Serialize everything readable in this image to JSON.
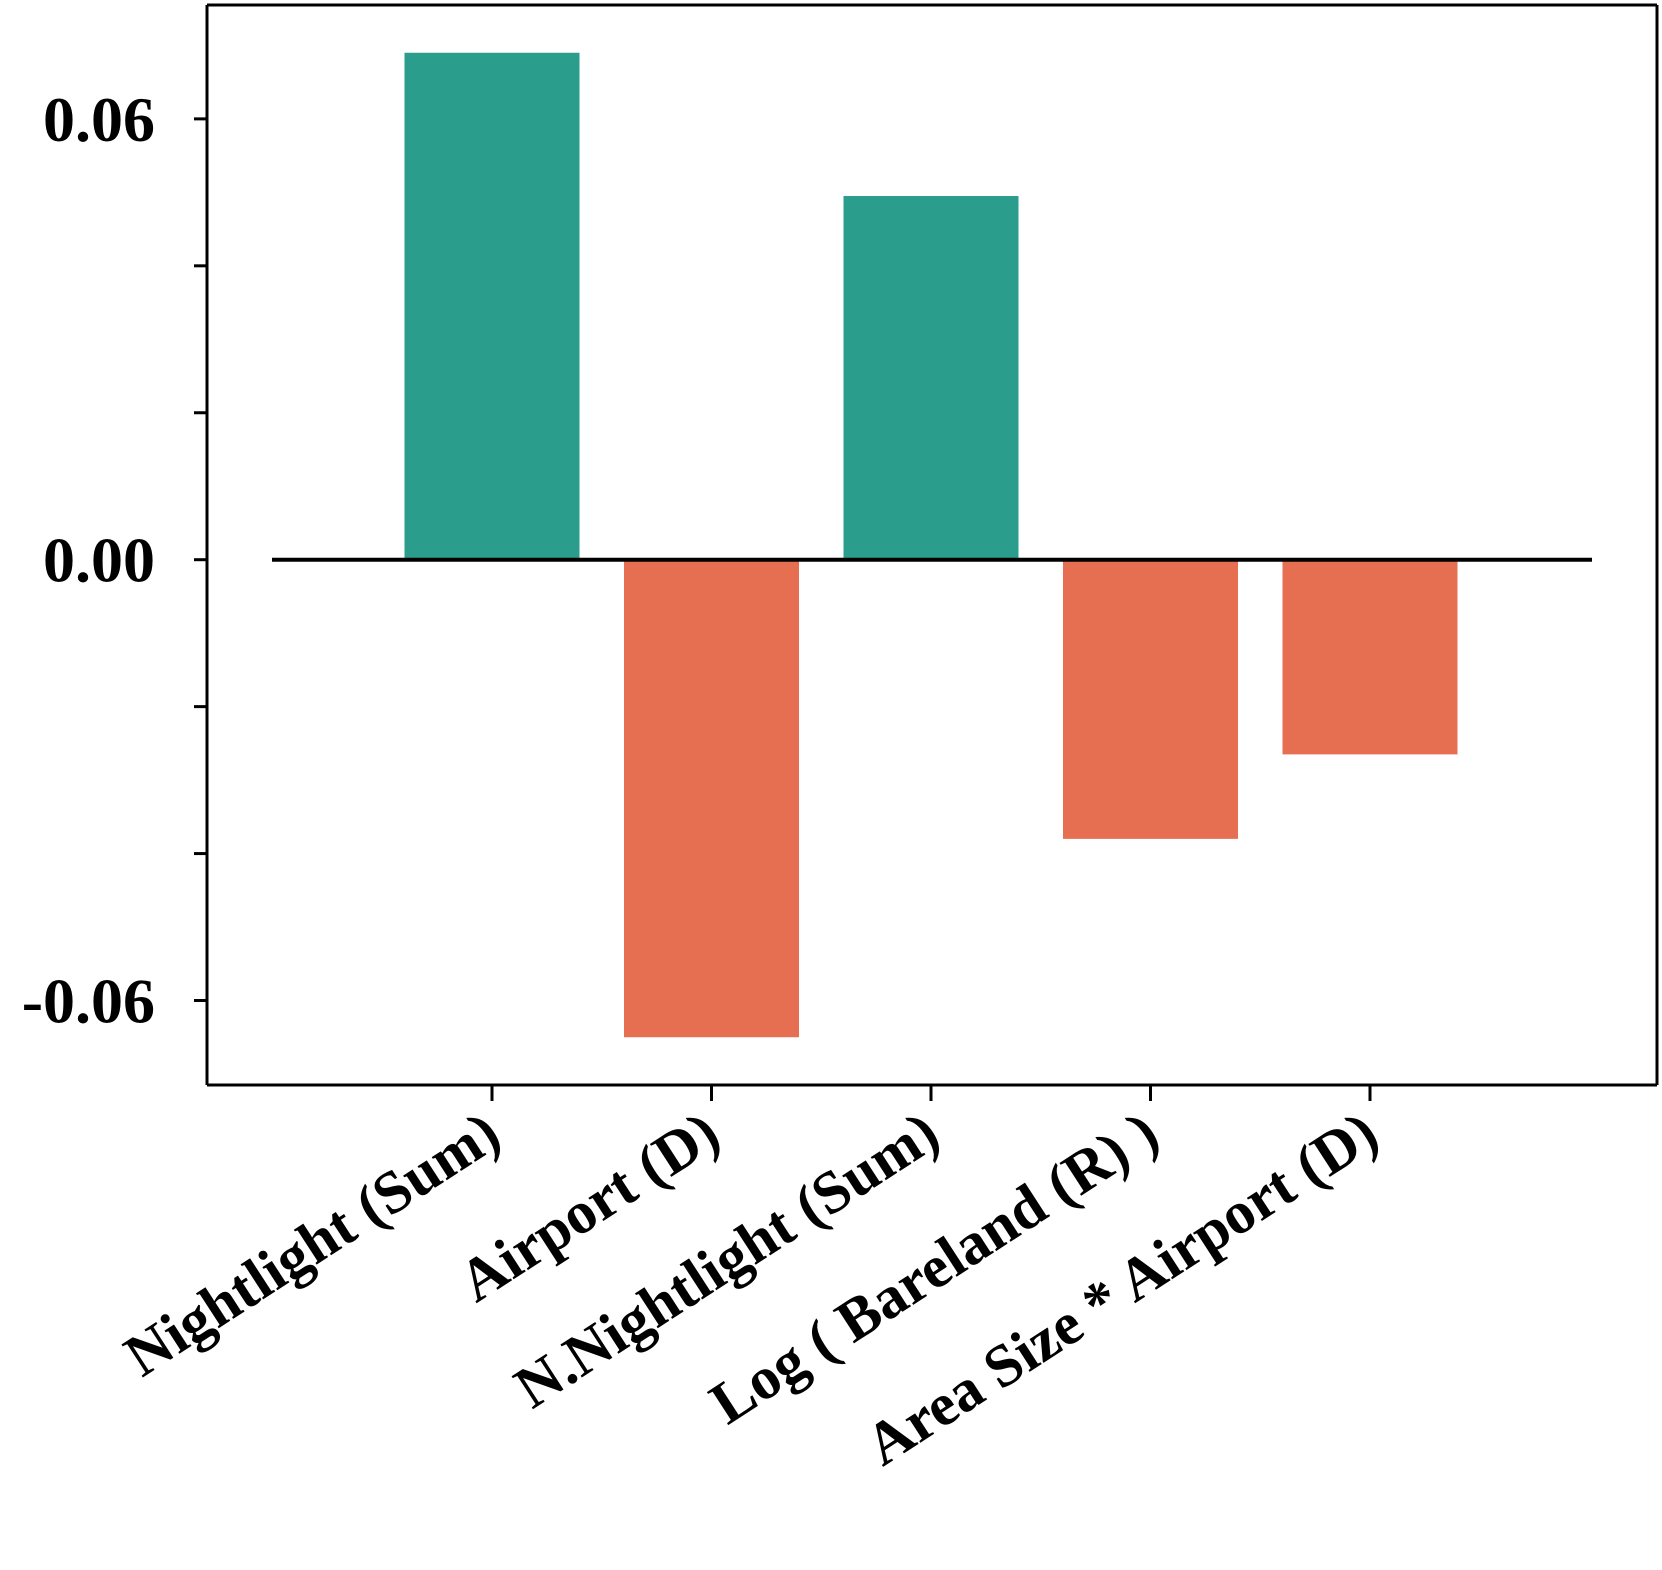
{
  "chart_data": {
    "type": "bar",
    "title": "",
    "xlabel": "",
    "ylabel": "",
    "categories": [
      "Nightlight (Sum)",
      "Airport (D)",
      "N.Nightlight (Sum)",
      "Log ( Bareland (R) )",
      "Area Size * Airport (D)"
    ],
    "values": [
      0.069,
      -0.065,
      0.0495,
      -0.038,
      -0.0265
    ],
    "ylim": [
      -0.0715,
      0.0755
    ],
    "yticks": [
      -0.06,
      -0.04,
      -0.02,
      0.0,
      0.02,
      0.04,
      0.06
    ],
    "ytick_labels": [
      "-0.06",
      "",
      "",
      "0.00",
      "",
      "",
      "0.06"
    ],
    "colors": {
      "positive": "#2a9d8c",
      "negative": "#e76f51",
      "zero_line": "#000000",
      "axes": "#000000"
    },
    "grid": false,
    "legend": "none"
  }
}
